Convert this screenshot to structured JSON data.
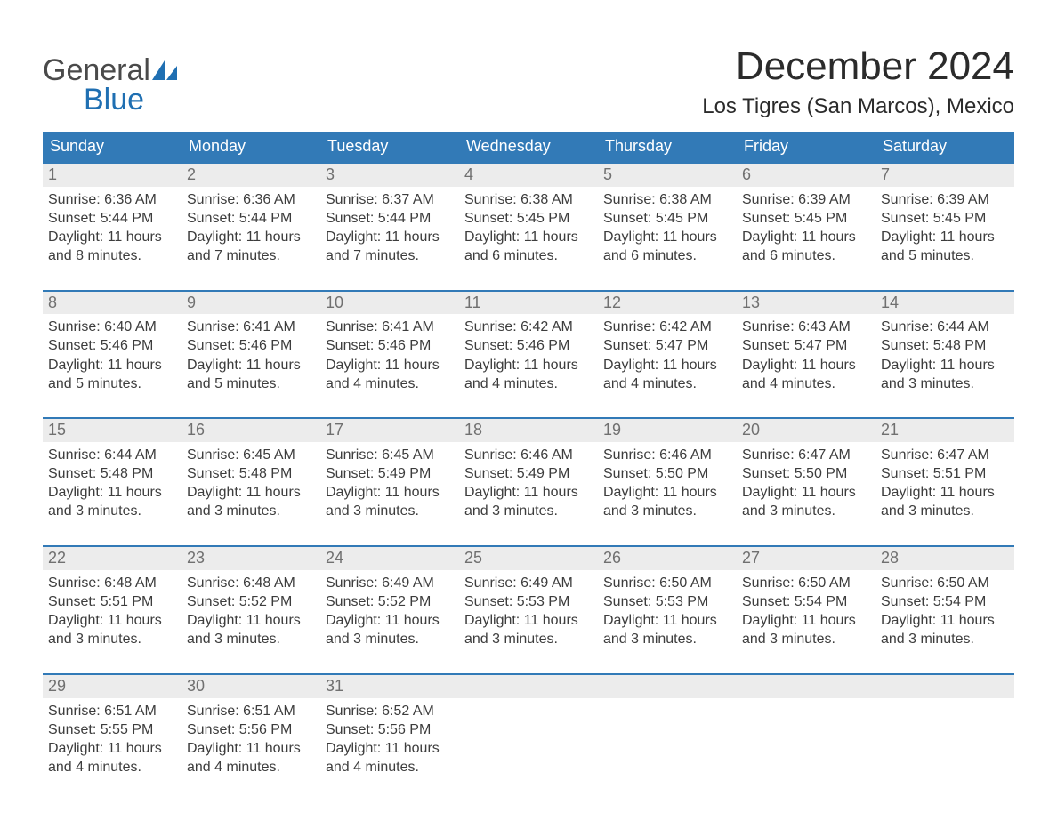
{
  "logo": {
    "text_general": "General",
    "text_blue": "Blue",
    "sail_color": "#1f6fb2",
    "general_color": "#4a4a4a"
  },
  "title": {
    "month": "December 2024",
    "location": "Los Tigres (San Marcos), Mexico"
  },
  "colors": {
    "header_bg": "#327ab7",
    "header_fg": "#ffffff",
    "daynum_bg": "#ececec",
    "daynum_fg": "#707070",
    "week_border": "#327ab7",
    "body_text": "#3d3d3d",
    "background": "#ffffff"
  },
  "days_of_week": [
    "Sunday",
    "Monday",
    "Tuesday",
    "Wednesday",
    "Thursday",
    "Friday",
    "Saturday"
  ],
  "weeks": [
    [
      {
        "day": 1,
        "sunrise": "6:36 AM",
        "sunset": "5:44 PM",
        "daylight": "11 hours and 8 minutes."
      },
      {
        "day": 2,
        "sunrise": "6:36 AM",
        "sunset": "5:44 PM",
        "daylight": "11 hours and 7 minutes."
      },
      {
        "day": 3,
        "sunrise": "6:37 AM",
        "sunset": "5:44 PM",
        "daylight": "11 hours and 7 minutes."
      },
      {
        "day": 4,
        "sunrise": "6:38 AM",
        "sunset": "5:45 PM",
        "daylight": "11 hours and 6 minutes."
      },
      {
        "day": 5,
        "sunrise": "6:38 AM",
        "sunset": "5:45 PM",
        "daylight": "11 hours and 6 minutes."
      },
      {
        "day": 6,
        "sunrise": "6:39 AM",
        "sunset": "5:45 PM",
        "daylight": "11 hours and 6 minutes."
      },
      {
        "day": 7,
        "sunrise": "6:39 AM",
        "sunset": "5:45 PM",
        "daylight": "11 hours and 5 minutes."
      }
    ],
    [
      {
        "day": 8,
        "sunrise": "6:40 AM",
        "sunset": "5:46 PM",
        "daylight": "11 hours and 5 minutes."
      },
      {
        "day": 9,
        "sunrise": "6:41 AM",
        "sunset": "5:46 PM",
        "daylight": "11 hours and 5 minutes."
      },
      {
        "day": 10,
        "sunrise": "6:41 AM",
        "sunset": "5:46 PM",
        "daylight": "11 hours and 4 minutes."
      },
      {
        "day": 11,
        "sunrise": "6:42 AM",
        "sunset": "5:46 PM",
        "daylight": "11 hours and 4 minutes."
      },
      {
        "day": 12,
        "sunrise": "6:42 AM",
        "sunset": "5:47 PM",
        "daylight": "11 hours and 4 minutes."
      },
      {
        "day": 13,
        "sunrise": "6:43 AM",
        "sunset": "5:47 PM",
        "daylight": "11 hours and 4 minutes."
      },
      {
        "day": 14,
        "sunrise": "6:44 AM",
        "sunset": "5:48 PM",
        "daylight": "11 hours and 3 minutes."
      }
    ],
    [
      {
        "day": 15,
        "sunrise": "6:44 AM",
        "sunset": "5:48 PM",
        "daylight": "11 hours and 3 minutes."
      },
      {
        "day": 16,
        "sunrise": "6:45 AM",
        "sunset": "5:48 PM",
        "daylight": "11 hours and 3 minutes."
      },
      {
        "day": 17,
        "sunrise": "6:45 AM",
        "sunset": "5:49 PM",
        "daylight": "11 hours and 3 minutes."
      },
      {
        "day": 18,
        "sunrise": "6:46 AM",
        "sunset": "5:49 PM",
        "daylight": "11 hours and 3 minutes."
      },
      {
        "day": 19,
        "sunrise": "6:46 AM",
        "sunset": "5:50 PM",
        "daylight": "11 hours and 3 minutes."
      },
      {
        "day": 20,
        "sunrise": "6:47 AM",
        "sunset": "5:50 PM",
        "daylight": "11 hours and 3 minutes."
      },
      {
        "day": 21,
        "sunrise": "6:47 AM",
        "sunset": "5:51 PM",
        "daylight": "11 hours and 3 minutes."
      }
    ],
    [
      {
        "day": 22,
        "sunrise": "6:48 AM",
        "sunset": "5:51 PM",
        "daylight": "11 hours and 3 minutes."
      },
      {
        "day": 23,
        "sunrise": "6:48 AM",
        "sunset": "5:52 PM",
        "daylight": "11 hours and 3 minutes."
      },
      {
        "day": 24,
        "sunrise": "6:49 AM",
        "sunset": "5:52 PM",
        "daylight": "11 hours and 3 minutes."
      },
      {
        "day": 25,
        "sunrise": "6:49 AM",
        "sunset": "5:53 PM",
        "daylight": "11 hours and 3 minutes."
      },
      {
        "day": 26,
        "sunrise": "6:50 AM",
        "sunset": "5:53 PM",
        "daylight": "11 hours and 3 minutes."
      },
      {
        "day": 27,
        "sunrise": "6:50 AM",
        "sunset": "5:54 PM",
        "daylight": "11 hours and 3 minutes."
      },
      {
        "day": 28,
        "sunrise": "6:50 AM",
        "sunset": "5:54 PM",
        "daylight": "11 hours and 3 minutes."
      }
    ],
    [
      {
        "day": 29,
        "sunrise": "6:51 AM",
        "sunset": "5:55 PM",
        "daylight": "11 hours and 4 minutes."
      },
      {
        "day": 30,
        "sunrise": "6:51 AM",
        "sunset": "5:56 PM",
        "daylight": "11 hours and 4 minutes."
      },
      {
        "day": 31,
        "sunrise": "6:52 AM",
        "sunset": "5:56 PM",
        "daylight": "11 hours and 4 minutes."
      },
      null,
      null,
      null,
      null
    ]
  ],
  "labels": {
    "sunrise_prefix": "Sunrise: ",
    "sunset_prefix": "Sunset: ",
    "daylight_prefix": "Daylight: "
  },
  "typography": {
    "month_title_fontsize": 44,
    "location_fontsize": 24,
    "dow_fontsize": 18,
    "daynum_fontsize": 18,
    "body_fontsize": 16
  }
}
